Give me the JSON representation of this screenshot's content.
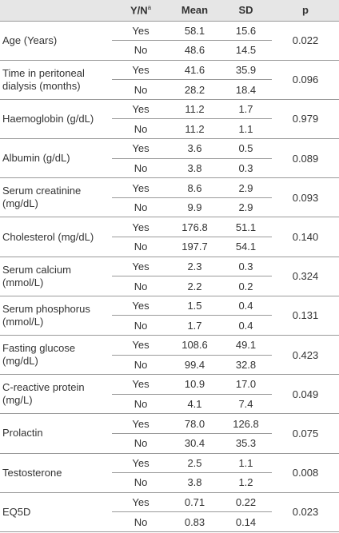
{
  "table": {
    "header": {
      "yn": "Y/N",
      "yn_note": "a",
      "mean": "Mean",
      "sd": "SD",
      "p": "p"
    },
    "rows": [
      {
        "label": "Age (Years)",
        "p": "0.022",
        "yes": {
          "yn": "Yes",
          "mean": "58.1",
          "sd": "15.6"
        },
        "no": {
          "yn": "No",
          "mean": "48.6",
          "sd": "14.5"
        }
      },
      {
        "label": "Time in peritoneal dialysis (months)",
        "p": "0.096",
        "yes": {
          "yn": "Yes",
          "mean": "41.6",
          "sd": "35.9"
        },
        "no": {
          "yn": "No",
          "mean": "28.2",
          "sd": "18.4"
        }
      },
      {
        "label": "Haemoglobin (g/dL)",
        "p": "0.979",
        "yes": {
          "yn": "Yes",
          "mean": "11.2",
          "sd": "1.7"
        },
        "no": {
          "yn": "No",
          "mean": "11.2",
          "sd": "1.1"
        }
      },
      {
        "label": "Albumin (g/dL)",
        "p": "0.089",
        "yes": {
          "yn": "Yes",
          "mean": "3.6",
          "sd": "0.5"
        },
        "no": {
          "yn": "No",
          "mean": "3.8",
          "sd": "0.3"
        }
      },
      {
        "label": "Serum creatinine (mg/dL)",
        "p": "0.093",
        "yes": {
          "yn": "Yes",
          "mean": "8.6",
          "sd": "2.9"
        },
        "no": {
          "yn": "No",
          "mean": "9.9",
          "sd": "2.9"
        }
      },
      {
        "label": "Cholesterol (mg/dL)",
        "p": "0.140",
        "yes": {
          "yn": "Yes",
          "mean": "176.8",
          "sd": "51.1"
        },
        "no": {
          "yn": "No",
          "mean": "197.7",
          "sd": "54.1"
        }
      },
      {
        "label": "Serum calcium (mmol/L)",
        "p": "0.324",
        "yes": {
          "yn": "Yes",
          "mean": "2.3",
          "sd": "0.3"
        },
        "no": {
          "yn": "No",
          "mean": "2.2",
          "sd": "0.2"
        }
      },
      {
        "label": "Serum phosphorus (mmol/L)",
        "p": "0.131",
        "yes": {
          "yn": "Yes",
          "mean": "1.5",
          "sd": "0.4"
        },
        "no": {
          "yn": "No",
          "mean": "1.7",
          "sd": "0.4"
        }
      },
      {
        "label": "Fasting glucose (mg/dL)",
        "p": "0.423",
        "yes": {
          "yn": "Yes",
          "mean": "108.6",
          "sd": "49.1"
        },
        "no": {
          "yn": "No",
          "mean": "99.4",
          "sd": "32.8"
        }
      },
      {
        "label": "C-reactive protein (mg/L)",
        "p": "0.049",
        "yes": {
          "yn": "Yes",
          "mean": "10.9",
          "sd": "17.0"
        },
        "no": {
          "yn": "No",
          "mean": "4.1",
          "sd": "7.4"
        }
      },
      {
        "label": "Prolactin",
        "p": "0.075",
        "yes": {
          "yn": "Yes",
          "mean": "78.0",
          "sd": "126.8"
        },
        "no": {
          "yn": "No",
          "mean": "30.4",
          "sd": "35.3"
        }
      },
      {
        "label": "Testosterone",
        "p": "0.008",
        "yes": {
          "yn": "Yes",
          "mean": "2.5",
          "sd": "1.1"
        },
        "no": {
          "yn": "No",
          "mean": "3.8",
          "sd": "1.2"
        }
      },
      {
        "label": "EQ5D",
        "p": "0.023",
        "yes": {
          "yn": "Yes",
          "mean": "0.71",
          "sd": "0.22"
        },
        "no": {
          "yn": "No",
          "mean": "0.83",
          "sd": "0.14"
        }
      }
    ]
  }
}
